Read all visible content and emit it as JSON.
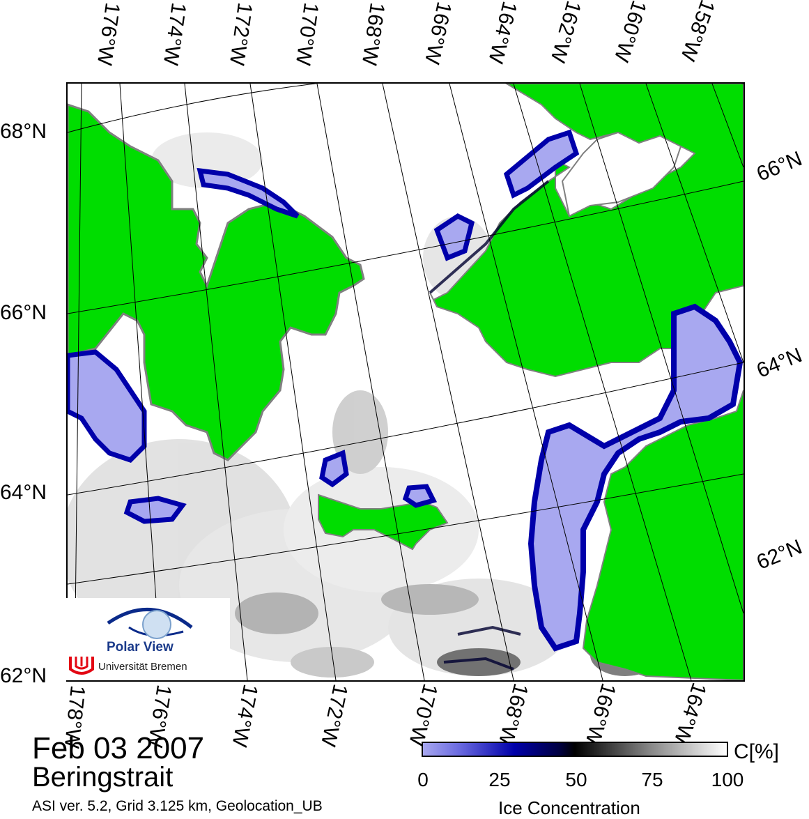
{
  "map": {
    "top_lon_labels": [
      "176°W",
      "174°W",
      "172°W",
      "170°W",
      "168°W",
      "166°W",
      "164°W",
      "162°W",
      "160°W",
      "158°W"
    ],
    "bottom_lon_labels": [
      "178°W",
      "176°W",
      "174°W",
      "172°W",
      "170°W",
      "168°W",
      "166°W",
      "164°W"
    ],
    "left_lat_labels": [
      "68°N",
      "66°N",
      "64°N",
      "62°N"
    ],
    "right_lat_labels": [
      "66°N",
      "64°N",
      "62°N"
    ],
    "colors": {
      "land": "#00dd00",
      "coast_mask": "#808080",
      "ice_low": "#a8a8f0",
      "ice_mid": "#0000aa",
      "ice_dark": "#000030",
      "open_water": "#ffffff"
    }
  },
  "logo": {
    "name": "Polar View",
    "institution": "Universität Bremen"
  },
  "footer": {
    "date": "Feb 03 2007",
    "region": "Beringstrait",
    "info": "ASI ver. 5.2,  Grid 3.125 km, Geolocation_UB"
  },
  "colorbar": {
    "unit": "C[%]",
    "title": "Ice Concentration",
    "ticks": [
      "0",
      "25",
      "50",
      "75",
      "100"
    ]
  }
}
